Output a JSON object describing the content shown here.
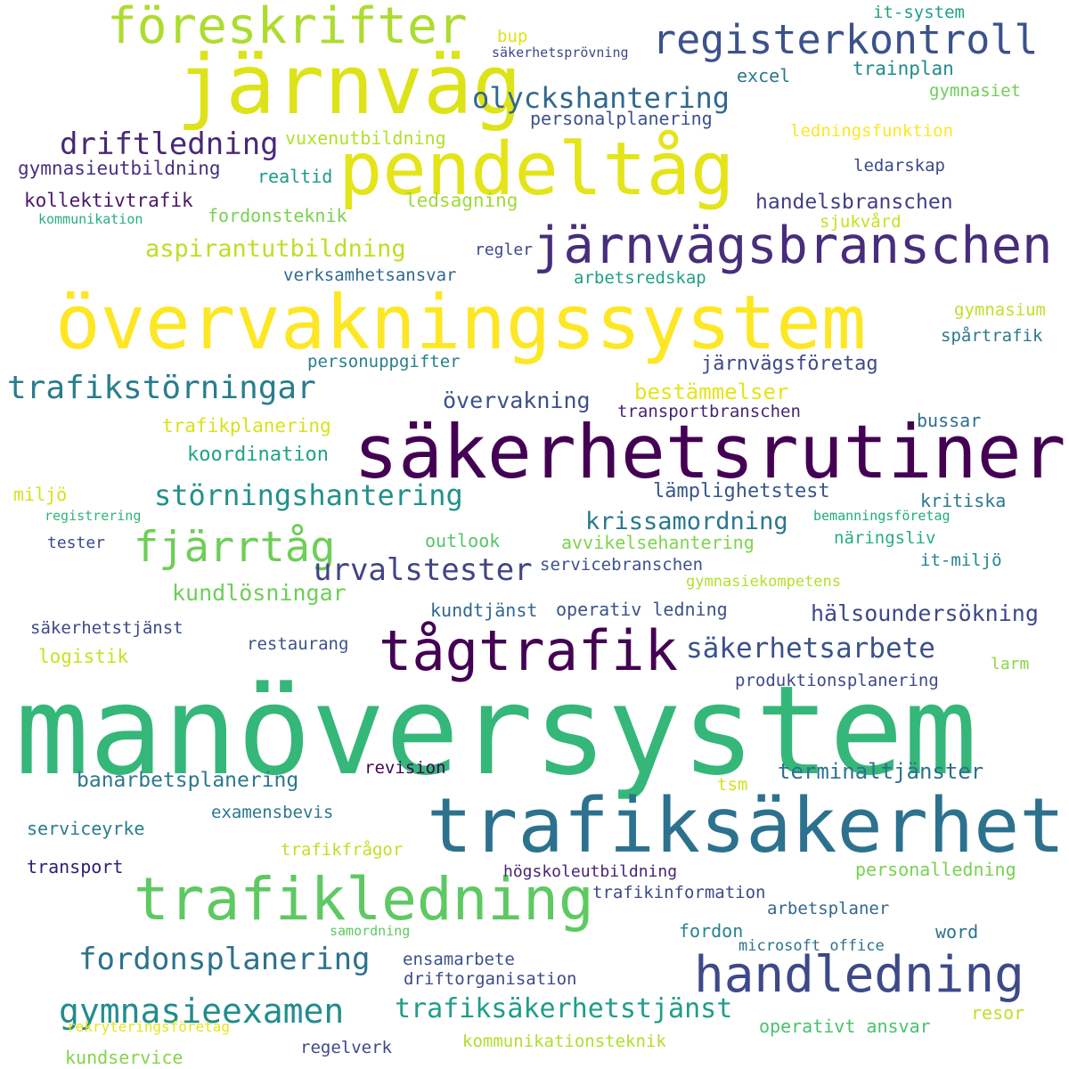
{
  "words": [
    {
      "text": "manöversystem",
      "color": "#35b779"
    },
    {
      "text": "övervakningssystem",
      "color": "#fde725"
    },
    {
      "text": "säkerhetsrutiner",
      "color": "#440154"
    },
    {
      "text": "trafiksäkerhet",
      "color": "#2c728e"
    },
    {
      "text": "järnväg",
      "color": "#dde318"
    },
    {
      "text": "pendeltåg",
      "color": "#e4e419"
    },
    {
      "text": "järnvägsbranschen",
      "color": "#472d7b"
    },
    {
      "text": "föreskrifter",
      "color": "#addc30"
    },
    {
      "text": "registerkontroll",
      "color": "#3b528b"
    },
    {
      "text": "tågtrafik",
      "color": "#440154"
    },
    {
      "text": "trafikledning",
      "color": "#5ec962"
    },
    {
      "text": "handledning",
      "color": "#3e4989"
    },
    {
      "text": "olyckshantering",
      "color": "#31688e"
    },
    {
      "text": "driftledning",
      "color": "#482878"
    },
    {
      "text": "trafikstörningar",
      "color": "#287d8e"
    },
    {
      "text": "störningshantering",
      "color": "#21918c"
    },
    {
      "text": "fjärrtåg",
      "color": "#6ece58"
    },
    {
      "text": "urvalstester",
      "color": "#414487"
    },
    {
      "text": "gymnasieexamen",
      "color": "#228c8d"
    },
    {
      "text": "fordonsplanering",
      "color": "#2c728e"
    },
    {
      "text": "trafiksäkerhetstjänst",
      "color": "#1f9e89"
    },
    {
      "text": "säkerhetsarbete",
      "color": "#3b528b"
    },
    {
      "text": "hälsoundersökning",
      "color": "#3e4989"
    },
    {
      "text": "krissamordning",
      "color": "#2a788e"
    },
    {
      "text": "aspirantutbildning",
      "color": "#bddf26"
    },
    {
      "text": "handelsbranschen",
      "color": "#433e85"
    },
    {
      "text": "bestämmelser",
      "color": "#e5e419"
    },
    {
      "text": "övervakning",
      "color": "#3b528b"
    },
    {
      "text": "kundlösningar",
      "color": "#6ece58"
    },
    {
      "text": "banarbetsplanering",
      "color": "#2a788e"
    },
    {
      "text": "terminaltjänster",
      "color": "#2c728e"
    },
    {
      "text": "koordination",
      "color": "#20a386"
    },
    {
      "text": "lämplighetstest",
      "color": "#39568c"
    },
    {
      "text": "järnvägsföretag",
      "color": "#3e4a89"
    },
    {
      "text": "transportbranschen",
      "color": "#482475"
    },
    {
      "text": "trafikplanering",
      "color": "#d8e219"
    },
    {
      "text": "trainplan",
      "color": "#238a8d"
    },
    {
      "text": "personalplanering",
      "color": "#3b528b"
    },
    {
      "text": "vuxenutbildning",
      "color": "#b5de2b"
    },
    {
      "text": "gymnasieutbildning",
      "color": "#46327e"
    },
    {
      "text": "kollektivtrafik",
      "color": "#48186a"
    },
    {
      "text": "fordonsteknik",
      "color": "#7ad151"
    },
    {
      "text": "ledsagning",
      "color": "#a0da39"
    },
    {
      "text": "realtid",
      "color": "#1f9a8a"
    },
    {
      "text": "kommunikation",
      "color": "#27ad81"
    },
    {
      "text": "sjukvård",
      "color": "#c8e020"
    },
    {
      "text": "regler",
      "color": "#3e4989"
    },
    {
      "text": "arbetsredskap",
      "color": "#1fa187"
    },
    {
      "text": "verksamhetsansvar",
      "color": "#31688e"
    },
    {
      "text": "personuppgifter",
      "color": "#277f8e"
    },
    {
      "text": "gymnasium",
      "color": "#c0df25"
    },
    {
      "text": "spårtrafik",
      "color": "#2a788e"
    },
    {
      "text": "bussar",
      "color": "#2d708e"
    },
    {
      "text": "kritiska",
      "color": "#2a788e"
    },
    {
      "text": "miljö",
      "color": "#d2e21b"
    },
    {
      "text": "registrering",
      "color": "#2fb47c"
    },
    {
      "text": "tester",
      "color": "#3e4989"
    },
    {
      "text": "outlook",
      "color": "#54c568"
    },
    {
      "text": "avvikelsehantering",
      "color": "#7fd34e"
    },
    {
      "text": "servicebranschen",
      "color": "#3b528b"
    },
    {
      "text": "bemanningsföretag",
      "color": "#23a983"
    },
    {
      "text": "näringsliv",
      "color": "#26ad81"
    },
    {
      "text": "it-miljö",
      "color": "#25848e"
    },
    {
      "text": "gymnasiekompetens",
      "color": "#b5de2b"
    },
    {
      "text": "kundtjänst",
      "color": "#31688e"
    },
    {
      "text": "operativ ledning",
      "color": "#3b528b"
    },
    {
      "text": "säkerhetstjänst",
      "color": "#3e4989"
    },
    {
      "text": "restaurang",
      "color": "#3b528b"
    },
    {
      "text": "logistik",
      "color": "#cae11f"
    },
    {
      "text": "produktionsplanering",
      "color": "#3e4989"
    },
    {
      "text": "larm",
      "color": "#8bd646"
    },
    {
      "text": "revision",
      "color": "#440154"
    },
    {
      "text": "tsm",
      "color": "#d0e11c"
    },
    {
      "text": "examensbevis",
      "color": "#2a788e"
    },
    {
      "text": "serviceyrke",
      "color": "#287d8e"
    },
    {
      "text": "trafikfrågor",
      "color": "#c2df23"
    },
    {
      "text": "transport",
      "color": "#2d1e73"
    },
    {
      "text": "högskoleutbildning",
      "color": "#482475"
    },
    {
      "text": "personalledning",
      "color": "#7ad151"
    },
    {
      "text": "trafikinformation",
      "color": "#3e4989"
    },
    {
      "text": "arbetsplaner",
      "color": "#31688e"
    },
    {
      "text": "samordning",
      "color": "#5ec962"
    },
    {
      "text": "fordon",
      "color": "#25848e"
    },
    {
      "text": "microsoft office",
      "color": "#2c728e"
    },
    {
      "text": "word",
      "color": "#2c728e"
    },
    {
      "text": "ensamarbete",
      "color": "#3b528b"
    },
    {
      "text": "driftorganisation",
      "color": "#3e4a89"
    },
    {
      "text": "resor",
      "color": "#c2df23"
    },
    {
      "text": "rekryteringsföretag",
      "color": "#e7e419"
    },
    {
      "text": "kundservice",
      "color": "#84d44b"
    },
    {
      "text": "regelverk",
      "color": "#3e4989"
    },
    {
      "text": "kommunikationsteknik",
      "color": "#b2dd2d"
    },
    {
      "text": "operativt ansvar",
      "color": "#4ac16d"
    },
    {
      "text": "it-system",
      "color": "#1fa187"
    },
    {
      "text": "bup",
      "color": "#dde318"
    },
    {
      "text": "säkerhetsprövning",
      "color": "#3e4989"
    },
    {
      "text": "excel",
      "color": "#2a788e"
    },
    {
      "text": "gymnasiet",
      "color": "#6ece58"
    },
    {
      "text": "ledningsfunktion",
      "color": "#fde725"
    },
    {
      "text": "ledarskap",
      "color": "#3e4989"
    }
  ]
}
